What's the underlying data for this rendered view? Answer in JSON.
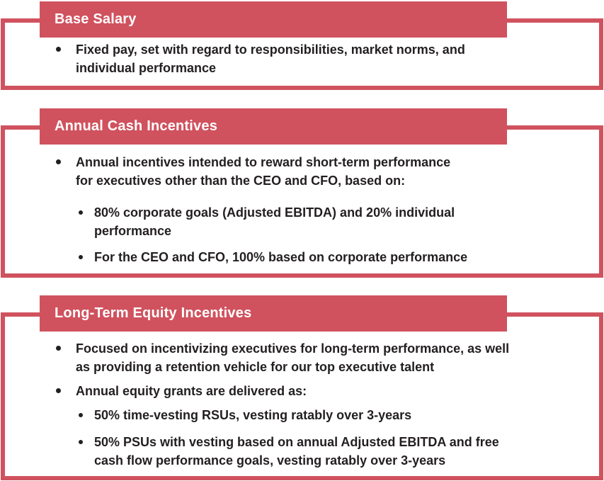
{
  "style": {
    "accent_red": "#d0525e",
    "text_color": "#231f20",
    "header_text_color": "#ffffff",
    "background": "#ffffff"
  },
  "sections": [
    {
      "title": "Base Salary",
      "bullets": [
        {
          "level": 1,
          "text": "Fixed pay, set with regard to responsibilities, market norms, and\nindividual performance"
        }
      ]
    },
    {
      "title": "Annual Cash Incentives",
      "bullets": [
        {
          "level": 1,
          "text": "Annual incentives intended to reward short-term performance\nfor executives other than the CEO and CFO, based on:"
        },
        {
          "level": 2,
          "text": "80% corporate goals (Adjusted EBITDA) and 20% individual\nperformance"
        },
        {
          "level": 2,
          "text": "For the CEO and CFO, 100% based on corporate performance"
        }
      ]
    },
    {
      "title": "Long-Term Equity Incentives",
      "bullets": [
        {
          "level": 1,
          "text": "Focused on incentivizing executives for long-term performance, as well\nas providing a retention vehicle for our top executive talent"
        },
        {
          "level": 1,
          "text": "Annual equity grants are delivered as:"
        },
        {
          "level": 2,
          "text": "50% time-vesting RSUs, vesting ratably over 3-years"
        },
        {
          "level": 2,
          "text": "50% PSUs with vesting based on annual Adjusted EBITDA and free\ncash flow performance goals, vesting ratably over 3-years"
        }
      ]
    }
  ]
}
